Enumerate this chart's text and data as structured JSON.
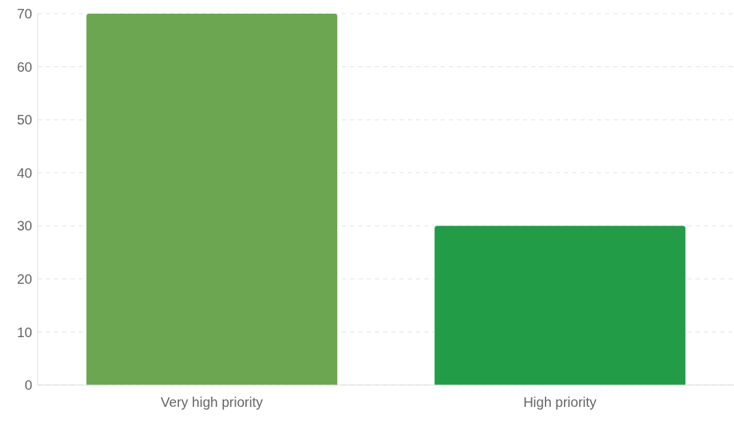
{
  "chart_data": {
    "type": "bar",
    "categories": [
      "Very high priority",
      "High priority"
    ],
    "values": [
      70,
      30
    ],
    "colors": [
      "#6ca651",
      "#239c47"
    ],
    "ylim": [
      0,
      70
    ],
    "yticks": [
      0,
      10,
      20,
      30,
      40,
      50,
      60,
      70
    ],
    "grid": "y",
    "legend": false
  }
}
